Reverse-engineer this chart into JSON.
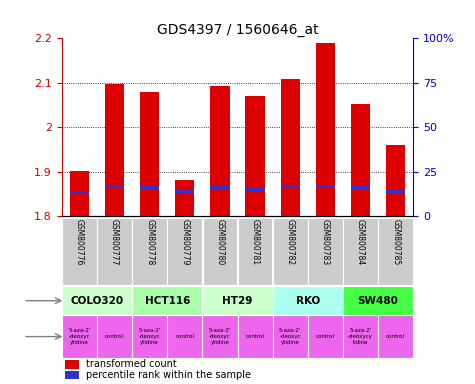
{
  "title": "GDS4397 / 1560646_at",
  "samples": [
    "GSM800776",
    "GSM800777",
    "GSM800778",
    "GSM800779",
    "GSM800780",
    "GSM800781",
    "GSM800782",
    "GSM800783",
    "GSM800784",
    "GSM800785"
  ],
  "transformed_count": [
    1.902,
    2.098,
    2.08,
    1.882,
    2.092,
    2.07,
    2.108,
    2.19,
    2.053,
    1.96
  ],
  "percentile_rank": [
    13,
    17,
    16,
    14,
    16,
    15,
    17,
    17,
    16,
    14
  ],
  "ylim": [
    1.8,
    2.2
  ],
  "yticks": [
    1.8,
    1.9,
    2.0,
    2.1,
    2.2
  ],
  "right_yticks": [
    0,
    25,
    50,
    75,
    100
  ],
  "right_ylim": [
    0,
    100
  ],
  "bar_color": "#dd0000",
  "percentile_color": "#3333cc",
  "bar_bottom": 1.8,
  "cell_lines": [
    {
      "name": "COLO320",
      "start": 0,
      "end": 2,
      "color": "#ccffcc"
    },
    {
      "name": "HCT116",
      "start": 2,
      "end": 4,
      "color": "#aaffaa"
    },
    {
      "name": "HT29",
      "start": 4,
      "end": 6,
      "color": "#ccffcc"
    },
    {
      "name": "RKO",
      "start": 6,
      "end": 8,
      "color": "#aaffee"
    },
    {
      "name": "SW480",
      "start": 8,
      "end": 10,
      "color": "#44ff44"
    }
  ],
  "agent_labels": [
    "5-aza-2'\n-deoxyc\nytidine",
    "control",
    "5-aza-2'\n-deoxyc\nytidine",
    "control",
    "5-aza-2'\n-deoxyc\nytidine",
    "control",
    "5-aza-2'\n-deoxyc\nytidine",
    "control",
    "5-aza-2'\n-deoxycy\ntidine",
    "control"
  ],
  "agent_color": "#ee66ee",
  "grid_color": "#888888",
  "bg_color": "#ffffff",
  "sample_bg_color": "#cccccc",
  "ylabel_color_left": "#cc0000",
  "ylabel_color_right": "#0000cc",
  "right_tick_labels": [
    "0",
    "25",
    "50",
    "75",
    "100%"
  ]
}
